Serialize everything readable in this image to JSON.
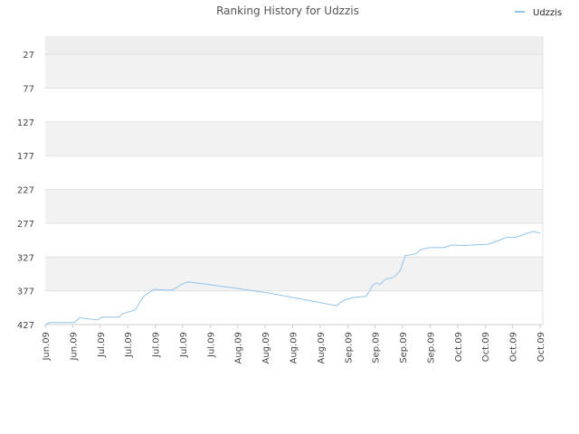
{
  "chart_data": {
    "type": "line",
    "title": "Ranking History for Udzzis",
    "ylim": [
      427,
      0
    ],
    "yticks": [
      27,
      77,
      127,
      177,
      227,
      277,
      327,
      377,
      427
    ],
    "xlim": [
      0,
      18.1
    ],
    "xticks": [
      {
        "value": 0,
        "label": "Jun.09"
      },
      {
        "value": 1,
        "label": "Jun.09"
      },
      {
        "value": 2,
        "label": "Jul.09"
      },
      {
        "value": 3,
        "label": "Jul.09"
      },
      {
        "value": 4,
        "label": "Jul.09"
      },
      {
        "value": 5,
        "label": "Jul.09"
      },
      {
        "value": 6,
        "label": "Jul.09"
      },
      {
        "value": 7,
        "label": "Aug.09"
      },
      {
        "value": 8,
        "label": "Aug.09"
      },
      {
        "value": 9,
        "label": "Aug.09"
      },
      {
        "value": 10,
        "label": "Aug.09"
      },
      {
        "value": 11,
        "label": "Sep.09"
      },
      {
        "value": 12,
        "label": "Sep.09"
      },
      {
        "value": 13,
        "label": "Sep.09"
      },
      {
        "value": 14,
        "label": "Sep.09"
      },
      {
        "value": 15,
        "label": "Oct.09"
      },
      {
        "value": 16,
        "label": "Oct.09"
      },
      {
        "value": 17,
        "label": "Oct.09"
      },
      {
        "value": 18,
        "label": "Oct.09"
      }
    ],
    "grid": true,
    "legend": "top-right",
    "x": [
      0,
      0.16,
      1.05,
      1.25,
      1.65,
      1.91,
      2.07,
      2.7,
      2.8,
      3.29,
      3.46,
      3.62,
      3.95,
      4.44,
      4.61,
      4.94,
      5.17,
      5.43,
      6.91,
      8.23,
      9.54,
      10.6,
      10.86,
      11.19,
      11.68,
      11.91,
      12.04,
      12.17,
      12.37,
      12.67,
      12.9,
      13.1,
      13.49,
      13.66,
      13.98,
      14.48,
      14.81,
      15.14,
      16.12,
      16.78,
      17.11,
      17.51,
      17.77,
      18
    ],
    "series": [
      {
        "name": "Udzzis",
        "color": "#8ec4f0",
        "values": [
          427,
          424,
          424,
          417,
          419,
          420,
          416,
          416,
          411,
          405,
          392,
          384,
          375,
          376,
          376,
          368,
          364,
          365,
          373,
          381,
          391,
          399,
          391,
          387,
          385,
          369,
          365,
          368,
          360,
          357,
          348,
          325,
          322,
          316,
          313,
          313,
          309,
          310,
          308,
          298,
          298,
          292,
          289,
          292
        ]
      }
    ]
  }
}
